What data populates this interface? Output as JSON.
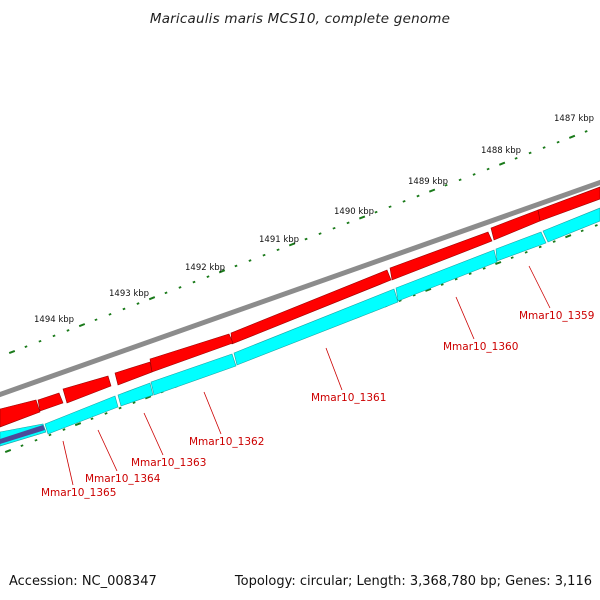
{
  "title": "Maricaulis maris MCS10, complete genome",
  "footer": {
    "accession": "Accession: NC_008347",
    "summary": "Topology: circular; Length: 3,368,780 bp; Genes: 3,116"
  },
  "colors": {
    "backbone": "#8c8c8c",
    "forward_cds": "#ff0000",
    "reverse_cds": "#00ffff",
    "other_feature": "#4b4b9a",
    "tick": "#1a7a1a",
    "gene_label": "#cc0000"
  },
  "kbp_scale": [
    "1487 kbp",
    "1488 kbp",
    "1489 kbp",
    "1490 kbp",
    "1491 kbp",
    "1492 kbp",
    "1493 kbp",
    "1494 kbp"
  ],
  "genes": [
    {
      "label": "Mmar10_1359",
      "strand": "reverse"
    },
    {
      "label": "Mmar10_1360",
      "strand": "reverse"
    },
    {
      "label": "Mmar10_1361",
      "strand": "reverse"
    },
    {
      "label": "Mmar10_1362",
      "strand": "reverse"
    },
    {
      "label": "Mmar10_1363",
      "strand": "reverse"
    },
    {
      "label": "Mmar10_1364",
      "strand": "reverse"
    },
    {
      "label": "Mmar10_1365",
      "strand": "reverse"
    }
  ]
}
